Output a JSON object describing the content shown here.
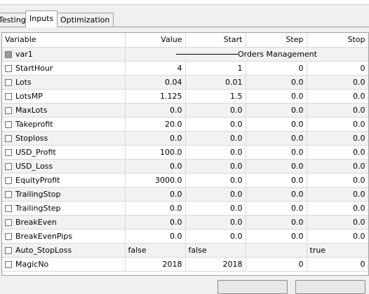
{
  "tabs": [
    {
      "label": "Testing",
      "active": false
    },
    {
      "label": "Inputs",
      "active": true
    },
    {
      "label": "Optimization",
      "active": false
    }
  ],
  "columns": {
    "variable": "Variable",
    "value": "Value",
    "start": "Start",
    "step": "Step",
    "stop": "Stop"
  },
  "group_row": {
    "name": "var1",
    "label": "Orders Management"
  },
  "rows": [
    {
      "name": "StartHour",
      "value": "4",
      "start": "1",
      "step": "0",
      "stop": "0"
    },
    {
      "name": "Lots",
      "value": "0.04",
      "start": "0.01",
      "step": "0.0",
      "stop": "0.0"
    },
    {
      "name": "LotsMP",
      "value": "1.125",
      "start": "1.5",
      "step": "0.0",
      "stop": "0.0"
    },
    {
      "name": "MaxLots",
      "value": "0.0",
      "start": "0.0",
      "step": "0.0",
      "stop": "0.0"
    },
    {
      "name": "Takeprofit",
      "value": "20.0",
      "start": "0.0",
      "step": "0.0",
      "stop": "0.0"
    },
    {
      "name": "Stoploss",
      "value": "0.0",
      "start": "0.0",
      "step": "0.0",
      "stop": "0.0"
    },
    {
      "name": "USD_Profit",
      "value": "100.0",
      "start": "0.0",
      "step": "0.0",
      "stop": "0.0"
    },
    {
      "name": "USD_Loss",
      "value": "0.0",
      "start": "0.0",
      "step": "0.0",
      "stop": "0.0"
    },
    {
      "name": "EquityProfit",
      "value": "3000.0",
      "start": "0.0",
      "step": "0.0",
      "stop": "0.0"
    },
    {
      "name": "TrailingStop",
      "value": "0.0",
      "start": "0.0",
      "step": "0.0",
      "stop": "0.0"
    },
    {
      "name": "TrailingStep",
      "value": "0.0",
      "start": "0.0",
      "step": "0.0",
      "stop": "0.0"
    },
    {
      "name": "BreakEven",
      "value": "0.0",
      "start": "0.0",
      "step": "0.0",
      "stop": "0.0"
    },
    {
      "name": "BreakEvenPips",
      "value": "0.0",
      "start": "0.0",
      "step": "0.0",
      "stop": "0.0"
    },
    {
      "name": "Auto_StopLoss",
      "value": "false",
      "start": "false",
      "step": "",
      "stop": "true",
      "text": true
    },
    {
      "name": "MagicNo",
      "value": "2018",
      "start": "2018",
      "step": "0",
      "stop": "0"
    }
  ]
}
